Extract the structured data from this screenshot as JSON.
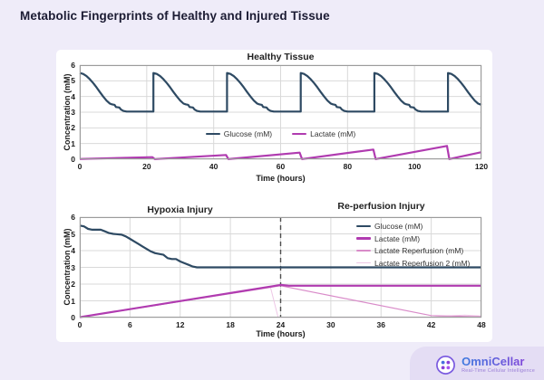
{
  "page": {
    "title": "Metabolic Fingerprints of Healthy and Injured Tissue",
    "background_color": "#efecf9",
    "card_color": "#ffffff"
  },
  "logo": {
    "name": "OmniCellar",
    "tagline": "Real-Time Cellular Intelligence",
    "blue": "#3f7bdf",
    "purple": "#8b3fd9"
  },
  "chart_data": [
    {
      "type": "line",
      "title": "Healthy Tissue",
      "xlabel": "Time (hours)",
      "ylabel": "Concentration (mM)",
      "xlim": [
        0,
        120
      ],
      "ylim": [
        0,
        6
      ],
      "xticks": [
        0,
        20,
        40,
        60,
        80,
        100,
        120
      ],
      "yticks": [
        0,
        1,
        2,
        3,
        4,
        5,
        6
      ],
      "grid": true,
      "legend_position": "inside-center-horizontal",
      "grid_color": "#d9d9d9",
      "border_color": "#9b9b9b",
      "series": [
        {
          "name": "Glucose (mM)",
          "color": "#2e4a63",
          "width": 2.2,
          "points": [
            [
              0,
              5.5
            ],
            [
              1,
              5.44
            ],
            [
              2,
              5.3
            ],
            [
              3,
              5.1
            ],
            [
              4,
              4.86
            ],
            [
              5,
              4.58
            ],
            [
              6,
              4.28
            ],
            [
              7,
              4.0
            ],
            [
              8,
              3.74
            ],
            [
              9,
              3.55
            ],
            [
              9.6,
              3.5
            ],
            [
              10.4,
              3.47
            ],
            [
              10.8,
              3.33
            ],
            [
              11.8,
              3.3
            ],
            [
              12.3,
              3.17
            ],
            [
              13,
              3.08
            ],
            [
              14,
              3.04
            ],
            [
              22,
              3.04
            ],
            [
              22,
              5.5
            ],
            [
              23,
              5.44
            ],
            [
              24,
              5.3
            ],
            [
              25,
              5.1
            ],
            [
              26,
              4.86
            ],
            [
              27,
              4.58
            ],
            [
              28,
              4.28
            ],
            [
              29,
              4.0
            ],
            [
              30,
              3.74
            ],
            [
              31,
              3.55
            ],
            [
              31.6,
              3.5
            ],
            [
              32.4,
              3.47
            ],
            [
              32.8,
              3.33
            ],
            [
              33.8,
              3.3
            ],
            [
              34.3,
              3.17
            ],
            [
              35,
              3.08
            ],
            [
              36,
              3.04
            ],
            [
              44,
              3.04
            ],
            [
              44,
              5.5
            ],
            [
              45,
              5.44
            ],
            [
              46,
              5.3
            ],
            [
              47,
              5.1
            ],
            [
              48,
              4.86
            ],
            [
              49,
              4.58
            ],
            [
              50,
              4.28
            ],
            [
              51,
              4.0
            ],
            [
              52,
              3.74
            ],
            [
              53,
              3.55
            ],
            [
              53.6,
              3.5
            ],
            [
              54.4,
              3.47
            ],
            [
              54.8,
              3.33
            ],
            [
              55.8,
              3.3
            ],
            [
              56.3,
              3.17
            ],
            [
              57,
              3.08
            ],
            [
              58,
              3.04
            ],
            [
              66,
              3.04
            ],
            [
              66,
              5.5
            ],
            [
              67,
              5.44
            ],
            [
              68,
              5.3
            ],
            [
              69,
              5.1
            ],
            [
              70,
              4.86
            ],
            [
              71,
              4.58
            ],
            [
              72,
              4.28
            ],
            [
              73,
              4.0
            ],
            [
              74,
              3.74
            ],
            [
              75,
              3.55
            ],
            [
              75.6,
              3.5
            ],
            [
              76.4,
              3.47
            ],
            [
              76.8,
              3.33
            ],
            [
              77.8,
              3.3
            ],
            [
              78.3,
              3.17
            ],
            [
              79,
              3.08
            ],
            [
              80,
              3.04
            ],
            [
              88,
              3.04
            ],
            [
              88,
              5.5
            ],
            [
              89,
              5.44
            ],
            [
              90,
              5.3
            ],
            [
              91,
              5.1
            ],
            [
              92,
              4.86
            ],
            [
              93,
              4.58
            ],
            [
              94,
              4.28
            ],
            [
              95,
              4.0
            ],
            [
              96,
              3.74
            ],
            [
              97,
              3.55
            ],
            [
              97.6,
              3.5
            ],
            [
              98.4,
              3.47
            ],
            [
              98.8,
              3.33
            ],
            [
              99.8,
              3.3
            ],
            [
              100.3,
              3.17
            ],
            [
              101,
              3.08
            ],
            [
              102,
              3.04
            ],
            [
              110,
              3.04
            ],
            [
              110,
              5.5
            ],
            [
              111,
              5.44
            ],
            [
              112,
              5.3
            ],
            [
              113,
              5.1
            ],
            [
              114,
              4.86
            ],
            [
              115,
              4.58
            ],
            [
              116,
              4.28
            ],
            [
              117,
              4.0
            ],
            [
              118,
              3.74
            ],
            [
              119,
              3.55
            ],
            [
              119.6,
              3.5
            ],
            [
              120,
              3.47
            ]
          ]
        },
        {
          "name": "Lactate (mM)",
          "color": "#b03bb0",
          "width": 2.2,
          "points": [
            [
              0,
              0.02
            ],
            [
              21.7,
              0.13
            ],
            [
              22.4,
              0.01
            ],
            [
              43.7,
              0.27
            ],
            [
              44.4,
              0.01
            ],
            [
              65.7,
              0.42
            ],
            [
              66.4,
              0.01
            ],
            [
              87.7,
              0.62
            ],
            [
              88.4,
              0.01
            ],
            [
              109.7,
              0.85
            ],
            [
              110.4,
              0.01
            ],
            [
              120,
              0.45
            ]
          ]
        }
      ]
    },
    {
      "type": "line",
      "title_left": "Hypoxia Injury",
      "title_right": "Re-perfusion Injury",
      "xlabel": "Time (hours)",
      "ylabel": "Concentration (mM)",
      "xlim": [
        0,
        48
      ],
      "ylim": [
        0,
        6
      ],
      "xticks": [
        0,
        6,
        12,
        18,
        24,
        30,
        36,
        42,
        48
      ],
      "yticks": [
        0,
        1,
        2,
        3,
        4,
        5,
        6
      ],
      "grid": true,
      "legend_position": "inside-top-right-vertical",
      "grid_color": "#d9d9d9",
      "border_color": "#9b9b9b",
      "annotations": [
        {
          "type": "vline",
          "x": 24,
          "style": "dashed",
          "color": "#4d4d4d"
        }
      ],
      "series": [
        {
          "name": "Glucose (mM)",
          "color": "#2e4a63",
          "width": 2.2,
          "points": [
            [
              0,
              5.5
            ],
            [
              0.5,
              5.45
            ],
            [
              1,
              5.3
            ],
            [
              1.5,
              5.25
            ],
            [
              2.5,
              5.25
            ],
            [
              3,
              5.15
            ],
            [
              3.5,
              5.05
            ],
            [
              4,
              5.0
            ],
            [
              5,
              4.95
            ],
            [
              5.5,
              4.85
            ],
            [
              6,
              4.7
            ],
            [
              6.5,
              4.55
            ],
            [
              7,
              4.4
            ],
            [
              7.5,
              4.25
            ],
            [
              8,
              4.1
            ],
            [
              8.5,
              3.95
            ],
            [
              9,
              3.85
            ],
            [
              9.5,
              3.8
            ],
            [
              10,
              3.75
            ],
            [
              10.5,
              3.55
            ],
            [
              11,
              3.5
            ],
            [
              11.5,
              3.5
            ],
            [
              12,
              3.35
            ],
            [
              12.5,
              3.25
            ],
            [
              13,
              3.15
            ],
            [
              13.5,
              3.05
            ],
            [
              14,
              3.0
            ],
            [
              48,
              3.0
            ]
          ]
        },
        {
          "name": "Lactate (mM)",
          "color": "#b03bb0",
          "width": 2.2,
          "points": [
            [
              0,
              0.02
            ],
            [
              24,
              1.95
            ],
            [
              25,
              1.9
            ],
            [
              48,
              1.9
            ]
          ]
        },
        {
          "name": "Lactate Reperfusion (mM)",
          "color": "#d98bc9",
          "width": 1.2,
          "points": [
            [
              0,
              0.02
            ],
            [
              24,
              1.9
            ],
            [
              42,
              0.12
            ],
            [
              48,
              0.05
            ]
          ]
        },
        {
          "name": "Lactate Reperfusion 2 (mM)",
          "color": "#eec7e6",
          "width": 1,
          "points": [
            [
              0,
              0.02
            ],
            [
              22.8,
              1.8
            ],
            [
              23.7,
              0.02
            ],
            [
              42,
              0.02
            ],
            [
              44,
              0.1
            ],
            [
              46,
              0.15
            ],
            [
              48,
              0.1
            ]
          ]
        }
      ]
    }
  ]
}
